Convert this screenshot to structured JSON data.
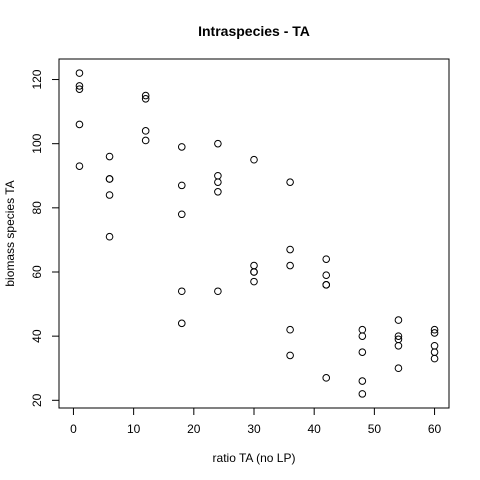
{
  "chart_data": {
    "type": "scatter",
    "title": "Intraspecies - TA",
    "xlabel": "ratio TA (no LP)",
    "ylabel": "biomass species TA",
    "xlim": [
      -2.4,
      62.4
    ],
    "ylim": [
      17.6,
      126.4
    ],
    "xticks": [
      0,
      10,
      20,
      30,
      40,
      50,
      60
    ],
    "yticks": [
      20,
      40,
      60,
      80,
      100,
      120
    ],
    "grid": false,
    "legend": "none",
    "marker": "open-circle",
    "color": "#000000",
    "points": [
      {
        "x": 1,
        "y": 122
      },
      {
        "x": 1,
        "y": 118
      },
      {
        "x": 1,
        "y": 117
      },
      {
        "x": 1,
        "y": 106
      },
      {
        "x": 1,
        "y": 93
      },
      {
        "x": 6,
        "y": 96
      },
      {
        "x": 6,
        "y": 89
      },
      {
        "x": 6,
        "y": 89
      },
      {
        "x": 6,
        "y": 84
      },
      {
        "x": 6,
        "y": 71
      },
      {
        "x": 12,
        "y": 115
      },
      {
        "x": 12,
        "y": 114
      },
      {
        "x": 12,
        "y": 104
      },
      {
        "x": 12,
        "y": 101
      },
      {
        "x": 18,
        "y": 99
      },
      {
        "x": 18,
        "y": 87
      },
      {
        "x": 18,
        "y": 78
      },
      {
        "x": 18,
        "y": 54
      },
      {
        "x": 18,
        "y": 44
      },
      {
        "x": 24,
        "y": 100
      },
      {
        "x": 24,
        "y": 90
      },
      {
        "x": 24,
        "y": 88
      },
      {
        "x": 24,
        "y": 85
      },
      {
        "x": 24,
        "y": 54
      },
      {
        "x": 30,
        "y": 95
      },
      {
        "x": 30,
        "y": 62
      },
      {
        "x": 30,
        "y": 60
      },
      {
        "x": 30,
        "y": 60
      },
      {
        "x": 30,
        "y": 57
      },
      {
        "x": 36,
        "y": 88
      },
      {
        "x": 36,
        "y": 67
      },
      {
        "x": 36,
        "y": 62
      },
      {
        "x": 36,
        "y": 42
      },
      {
        "x": 36,
        "y": 34
      },
      {
        "x": 42,
        "y": 64
      },
      {
        "x": 42,
        "y": 59
      },
      {
        "x": 42,
        "y": 56
      },
      {
        "x": 42,
        "y": 56
      },
      {
        "x": 42,
        "y": 27
      },
      {
        "x": 48,
        "y": 42
      },
      {
        "x": 48,
        "y": 40
      },
      {
        "x": 48,
        "y": 35
      },
      {
        "x": 48,
        "y": 26
      },
      {
        "x": 48,
        "y": 22
      },
      {
        "x": 54,
        "y": 45
      },
      {
        "x": 54,
        "y": 40
      },
      {
        "x": 54,
        "y": 39
      },
      {
        "x": 54,
        "y": 37
      },
      {
        "x": 54,
        "y": 30
      },
      {
        "x": 60,
        "y": 42
      },
      {
        "x": 60,
        "y": 41
      },
      {
        "x": 60,
        "y": 37
      },
      {
        "x": 60,
        "y": 35
      },
      {
        "x": 60,
        "y": 33
      }
    ]
  }
}
